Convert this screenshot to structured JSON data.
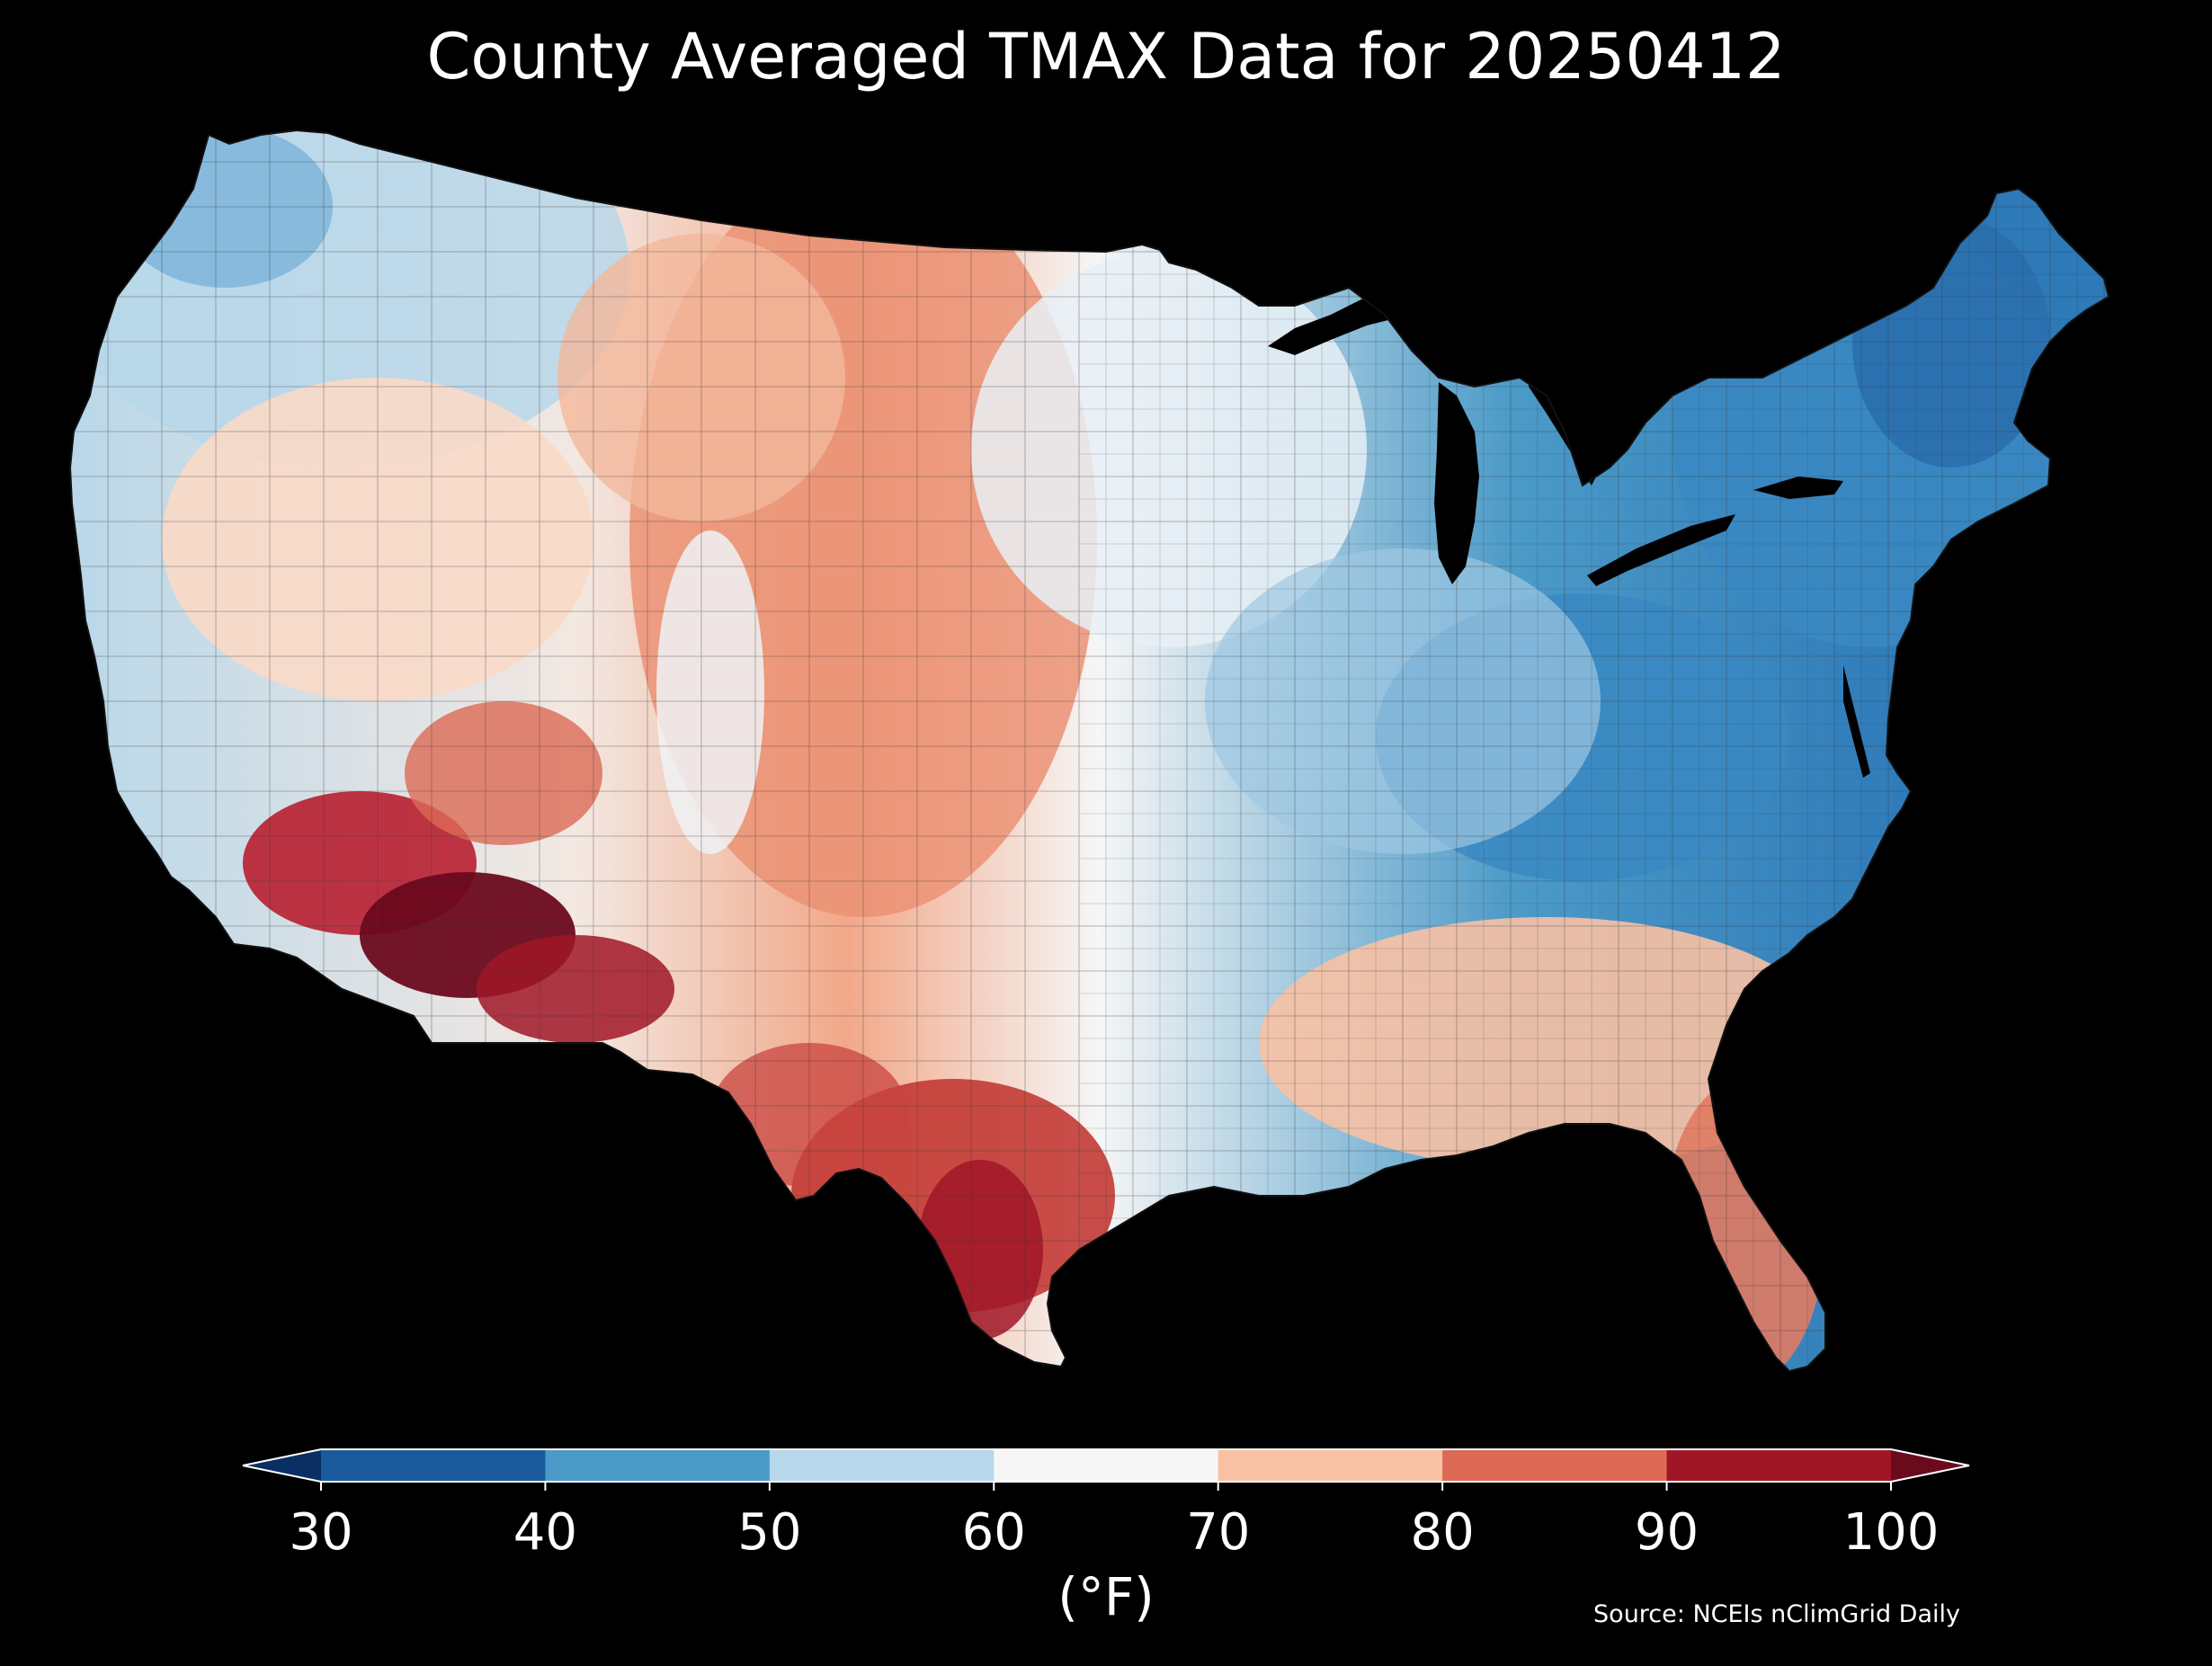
{
  "title": "County Averaged TMAX Data for 20250412",
  "source": "Source: NCEIs nClimGrid Daily",
  "colorbar": {
    "unit_label": "(°F)",
    "ticks": [
      "30",
      "40",
      "50",
      "60",
      "70",
      "80",
      "90",
      "100"
    ],
    "extend": "both",
    "bins": [
      {
        "from": 30,
        "to": 40,
        "color": "#1b5a9c"
      },
      {
        "from": 40,
        "to": 50,
        "color": "#4b9ac8"
      },
      {
        "from": 50,
        "to": 60,
        "color": "#b7d7ea"
      },
      {
        "from": 60,
        "to": 70,
        "color": "#f6f6f6"
      },
      {
        "from": 70,
        "to": 80,
        "color": "#f8c1a4"
      },
      {
        "from": 80,
        "to": 90,
        "color": "#dc6a55"
      },
      {
        "from": 90,
        "to": 100,
        "color": "#a01627"
      }
    ],
    "under_color": "#0b2f63",
    "over_color": "#6b0a1d"
  },
  "map_regions": [
    {
      "region": "Pacific Northwest coast",
      "tmax_band": "50-60"
    },
    {
      "region": "Northern Rockies",
      "tmax_band": "50-70"
    },
    {
      "region": "Northern Great Plains",
      "tmax_band": "70-90"
    },
    {
      "region": "Upper Midwest",
      "tmax_band": "50-70"
    },
    {
      "region": "Ohio Valley",
      "tmax_band": "40-50"
    },
    {
      "region": "New England",
      "tmax_band": "30-50"
    },
    {
      "region": "Southeast",
      "tmax_band": "70-80"
    },
    {
      "region": "Florida",
      "tmax_band": "80-90"
    },
    {
      "region": "South Texas",
      "tmax_band": "90-100"
    },
    {
      "region": "Southern Arizona",
      "tmax_band": ">100"
    },
    {
      "region": "Southern California deserts",
      "tmax_band": "90-100"
    }
  ]
}
